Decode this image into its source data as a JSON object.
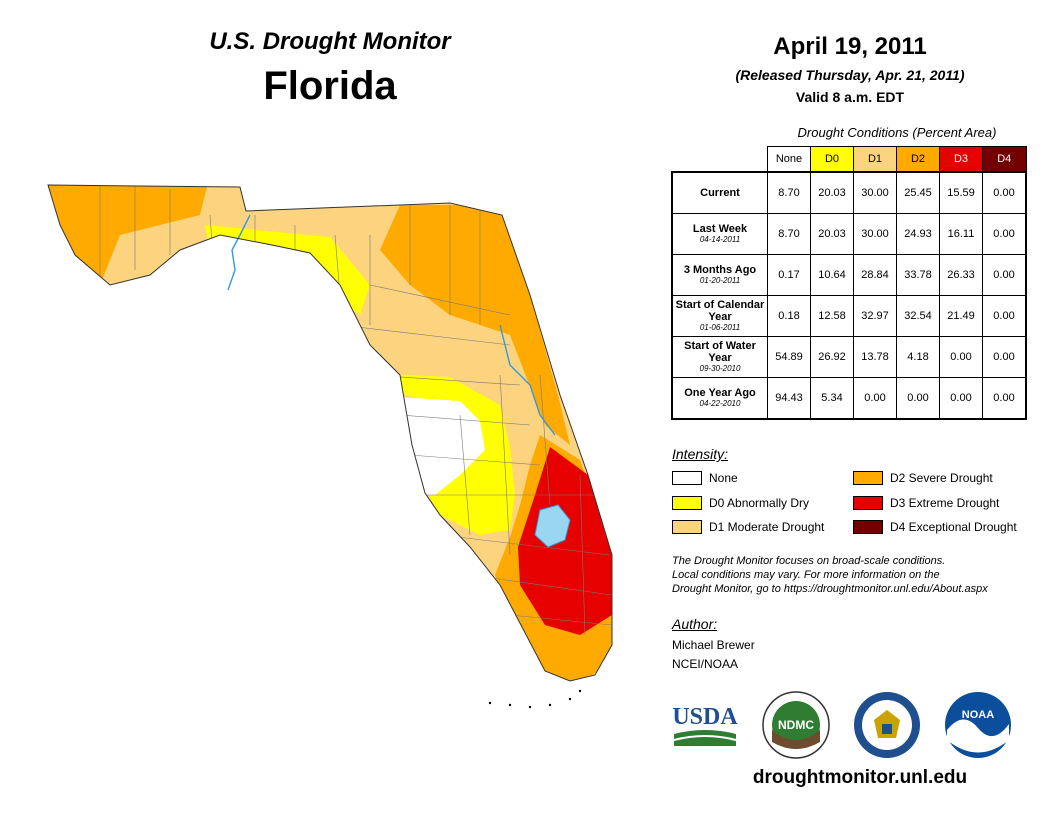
{
  "header": {
    "monitor_title": "U.S. Drought Monitor",
    "state": "Florida",
    "date": "April 19, 2011",
    "released": "(Released Thursday, Apr. 21, 2011)",
    "valid": "Valid 8 a.m. EDT"
  },
  "table": {
    "caption": "Drought Conditions (Percent Area)",
    "columns": [
      "None",
      "D0",
      "D1",
      "D2",
      "D3",
      "D4"
    ],
    "rows": [
      {
        "label": "Current",
        "date": "",
        "values": [
          "8.70",
          "20.03",
          "30.00",
          "25.45",
          "15.59",
          "0.00"
        ]
      },
      {
        "label": "Last Week",
        "date": "04-14-2011",
        "values": [
          "8.70",
          "20.03",
          "30.00",
          "24.93",
          "16.11",
          "0.00"
        ]
      },
      {
        "label": "3 Months Ago",
        "date": "01-20-2011",
        "values": [
          "0.17",
          "10.64",
          "28.84",
          "33.78",
          "26.33",
          "0.00"
        ]
      },
      {
        "label": "Start of Calendar Year",
        "date": "01-06-2011",
        "values": [
          "0.18",
          "12.58",
          "32.97",
          "32.54",
          "21.49",
          "0.00"
        ]
      },
      {
        "label": "Start of Water Year",
        "date": "09-30-2010",
        "values": [
          "54.89",
          "26.92",
          "13.78",
          "4.18",
          "0.00",
          "0.00"
        ]
      },
      {
        "label": "One Year Ago",
        "date": "04-22-2010",
        "values": [
          "94.43",
          "5.34",
          "0.00",
          "0.00",
          "0.00",
          "0.00"
        ]
      }
    ]
  },
  "legend": {
    "title": "Intensity:",
    "items": [
      {
        "label": "None",
        "color": "#ffffff"
      },
      {
        "label": "D0 Abnormally Dry",
        "color": "#ffff00"
      },
      {
        "label": "D1 Moderate Drought",
        "color": "#fcd37f"
      },
      {
        "label": "D2 Severe Drought",
        "color": "#ffaa00"
      },
      {
        "label": "D3 Extreme Drought",
        "color": "#e60000"
      },
      {
        "label": "D4 Exceptional Drought",
        "color": "#730000"
      }
    ]
  },
  "note": {
    "line1": "The Drought Monitor focuses on broad-scale conditions.",
    "line2": "Local conditions may vary. For more information on the",
    "line3": "Drought Monitor, go to https://droughtmonitor.unl.edu/About.aspx"
  },
  "author": {
    "heading": "Author:",
    "name": "Michael Brewer",
    "org": "NCEI/NOAA"
  },
  "logos": {
    "usda": "USDA",
    "ndmc": "NDMC",
    "noaa": "NOAA"
  },
  "site_url": "droughtmonitor.unl.edu",
  "colors": {
    "none": "#ffffff",
    "d0": "#ffff00",
    "d1": "#fcd37f",
    "d2": "#ffaa00",
    "d3": "#e60000",
    "d4": "#730000",
    "water": "#99d6f2",
    "river": "#3399dd"
  }
}
